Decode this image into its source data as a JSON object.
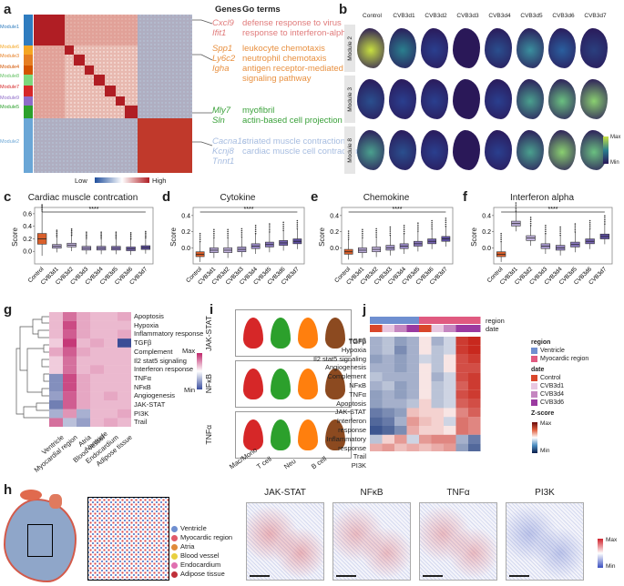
{
  "panels": {
    "a": "a",
    "b": "b",
    "c": "c",
    "d": "d",
    "e": "e",
    "f": "f",
    "g": "g",
    "h": "h",
    "i": "i",
    "j": "j"
  },
  "panel_a": {
    "genes_header": "Genes",
    "go_header": "Go terms",
    "modules": [
      "Module1",
      "Module6",
      "Module3",
      "Module4",
      "Module8",
      "Module7",
      "Module9",
      "Module5",
      "Module2"
    ],
    "groups": [
      {
        "genes": [
          "Cxcl9",
          "Ifit1"
        ],
        "terms": [
          "defense response to virus",
          "response to interferon-alpha"
        ],
        "color": "#e07b7b"
      },
      {
        "genes": [
          "Spp1",
          "Ly6c2",
          "Igha"
        ],
        "terms": [
          "leukocyte chemotaxis",
          "neutrophil chemotaxis",
          "antigen receptor-mediated",
          "signaling pathway"
        ],
        "color": "#e89040"
      },
      {
        "genes": [
          "Mly7",
          "Sln"
        ],
        "terms": [
          "myofibril",
          "actin-based cell projection"
        ],
        "color": "#3aa13a"
      },
      {
        "genes": [
          "Cacna1c",
          "Kcnj8",
          "Tnnt1"
        ],
        "terms": [
          "striated muscle contraction",
          "cardiac muscle cell contraction"
        ],
        "color": "#a6bce0"
      }
    ],
    "low": "Low",
    "high": "High"
  },
  "panel_b": {
    "columns": [
      "Control",
      "CVB3d1",
      "CVB3d2",
      "CVB3d3",
      "CVB3d4",
      "CVB3d5",
      "CVB3d6",
      "CVB3d7"
    ],
    "rows": [
      "Module 2",
      "Module 3",
      "Module 8"
    ],
    "max": "Max",
    "min": "Min"
  },
  "violin_panels": [
    {
      "key": "c",
      "title": "Cardiac muscle contrcation",
      "ylabel": "Score",
      "ticks": [
        "0.6",
        "0.4",
        "0.2",
        "0.0"
      ],
      "sig": "****"
    },
    {
      "key": "d",
      "title": "Cytokine",
      "ylabel": "Score",
      "ticks": [
        "0.4",
        "0.2",
        "0.0"
      ],
      "sig": "****"
    },
    {
      "key": "e",
      "title": "Chemokine",
      "ylabel": "Score",
      "ticks": [
        "0.4",
        "0.2",
        "0.0"
      ],
      "sig": "****"
    },
    {
      "key": "f",
      "title": "Interferon alpha",
      "ylabel": "Score",
      "ticks": [
        "0.4",
        "0.2",
        "0.0"
      ],
      "sig": "****"
    }
  ],
  "box_categories": [
    "Control",
    "CVB3d1",
    "CVB3d2",
    "CVB3d3",
    "CVB3d4",
    "CVB3d5",
    "CVB3d6",
    "CVB3d7"
  ],
  "panel_g": {
    "rows": [
      "Apoptosis",
      "Hypoxia",
      "Inflammatory response",
      "TGFβ",
      "Complement",
      "Il2 stat5 signaling",
      "Interferon response",
      "TNFα",
      "NFκB",
      "Angiogenesis",
      "JAK-STAT",
      "PI3K",
      "Trail"
    ],
    "cols": [
      "Ventricle",
      "Myocardial region",
      "Atria",
      "Blood vessel",
      "Endocardium",
      "Adipose tissue"
    ],
    "max": "Max",
    "min": "Min"
  },
  "panel_i": {
    "rows": [
      "JAK-STAT",
      "NFκB",
      "TNFα"
    ],
    "cols": [
      "Mac/Mono",
      "T cell",
      "Neu",
      "B cell"
    ]
  },
  "panel_j": {
    "rows": [
      "TGFβ",
      "Hypoxia",
      "Il2 stat5 signaling",
      "Angiogenesis",
      "Complement",
      "NFκB",
      "TNFα",
      "Apoptosis",
      "JAK-STAT",
      "Interferon response",
      "Inflammatory response",
      "Trail",
      "PI3K"
    ],
    "annot_region": "region",
    "annot_date": "date",
    "legend_region_title": "region",
    "legend_region": [
      "Ventricle",
      "Myocardic region"
    ],
    "legend_date_title": "date",
    "legend_date": [
      "Control",
      "CVB3d1",
      "CVB3d4",
      "CVB3d6"
    ],
    "zscore": "Z-score",
    "max": "Max",
    "min": "Min"
  },
  "panel_h": {
    "legend": [
      "Ventricle",
      "Myocardic region",
      "Atria",
      "Blood vessel",
      "Endocardium",
      "Adipose tissue"
    ],
    "maps": [
      "JAK-STAT",
      "NFκB",
      "TNFα",
      "PI3K"
    ],
    "max": "Max",
    "min": "Min"
  },
  "chart_data": [
    {
      "type": "box",
      "title": "Cardiac muscle contrcation",
      "categories": [
        "Control",
        "CVB3d1",
        "CVB3d2",
        "CVB3d3",
        "CVB3d4",
        "CVB3d5",
        "CVB3d6",
        "CVB3d7"
      ],
      "values": [
        0.2,
        0.08,
        0.1,
        0.05,
        0.05,
        0.05,
        0.04,
        0.06
      ],
      "ylabel": "Score"
    },
    {
      "type": "box",
      "title": "Cytokine",
      "categories": [
        "Control",
        "CVB3d1",
        "CVB3d2",
        "CVB3d3",
        "CVB3d4",
        "CVB3d5",
        "CVB3d6",
        "CVB3d7"
      ],
      "values": [
        -0.08,
        -0.03,
        -0.03,
        -0.02,
        0.02,
        0.04,
        0.06,
        0.08
      ],
      "ylabel": "Score"
    },
    {
      "type": "box",
      "title": "Chemokine",
      "categories": [
        "Control",
        "CVB3d1",
        "CVB3d2",
        "CVB3d3",
        "CVB3d4",
        "CVB3d5",
        "CVB3d6",
        "CVB3d7"
      ],
      "values": [
        -0.05,
        -0.03,
        -0.02,
        0.0,
        0.02,
        0.05,
        0.08,
        0.11
      ],
      "ylabel": "Score"
    },
    {
      "type": "box",
      "title": "Interferon alpha",
      "categories": [
        "Control",
        "CVB3d1",
        "CVB3d2",
        "CVB3d3",
        "CVB3d4",
        "CVB3d5",
        "CVB3d6",
        "CVB3d7"
      ],
      "values": [
        -0.08,
        0.3,
        0.12,
        0.02,
        0.0,
        0.04,
        0.08,
        0.14
      ],
      "ylabel": "Score"
    }
  ],
  "colors": {
    "box": [
      "#d95f2b",
      "#b8a9d6",
      "#c4b5e0",
      "#a99ad0",
      "#9a8ac8",
      "#8a78bf",
      "#7664b3",
      "#5e4fa3"
    ]
  }
}
